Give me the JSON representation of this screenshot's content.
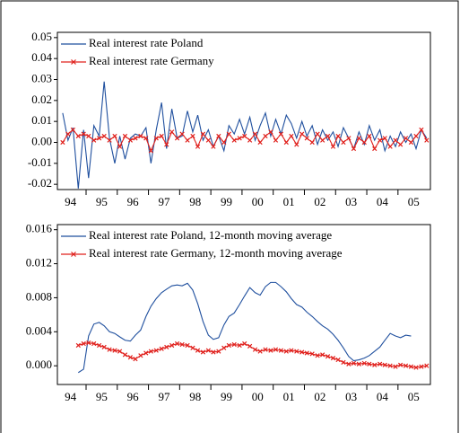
{
  "chart_data": [
    {
      "type": "line",
      "x": [
        1994.25,
        1994.42,
        1994.58,
        1994.75,
        1994.92,
        1995.08,
        1995.25,
        1995.42,
        1995.58,
        1995.75,
        1995.92,
        1996.08,
        1996.25,
        1996.42,
        1996.58,
        1996.75,
        1996.92,
        1997.08,
        1997.25,
        1997.42,
        1997.58,
        1997.75,
        1997.92,
        1998.08,
        1998.25,
        1998.42,
        1998.58,
        1998.75,
        1998.92,
        1999.08,
        1999.25,
        1999.42,
        1999.58,
        1999.75,
        1999.92,
        2000.08,
        2000.25,
        2000.42,
        2000.58,
        2000.75,
        2000.92,
        2001.08,
        2001.25,
        2001.42,
        2001.58,
        2001.75,
        2001.92,
        2002.08,
        2002.25,
        2002.42,
        2002.58,
        2002.75,
        2002.92,
        2003.08,
        2003.25,
        2003.42,
        2003.58,
        2003.75,
        2003.92,
        2004.08,
        2004.25,
        2004.42,
        2004.58,
        2004.75,
        2004.92,
        2005.08,
        2005.25,
        2005.42,
        2005.58,
        2005.75,
        2005.92
      ],
      "series": [
        {
          "name": "Real interest rate Poland",
          "color": "#1f4f9e",
          "values": [
            0.014,
            0.001,
            0.007,
            -0.022,
            0.006,
            -0.017,
            0.008,
            0.003,
            0.029,
            0.002,
            -0.01,
            0.003,
            -0.008,
            0.002,
            0.004,
            0.003,
            0.007,
            -0.01,
            0.006,
            0.019,
            -0.003,
            0.016,
            0.002,
            0.003,
            0.015,
            0.005,
            0.013,
            0.001,
            0.006,
            -0.002,
            0.003,
            -0.004,
            0.008,
            0.004,
            0.011,
            0.004,
            0.012,
            0.001,
            0.008,
            0.014,
            0.003,
            0.011,
            0.004,
            0.013,
            0.009,
            0.002,
            0.01,
            0.003,
            0.008,
            -0.001,
            0.006,
            0.001,
            0.005,
            -0.002,
            0.007,
            0.002,
            -0.003,
            0.005,
            -0.001,
            0.008,
            0.001,
            0.006,
            -0.004,
            0.003,
            -0.002,
            0.005,
            0.0,
            0.004,
            -0.003,
            0.006,
            0.002
          ]
        },
        {
          "name": "Real interest rate Germany",
          "color": "#e0201c",
          "marker": "x",
          "values": [
            0.0,
            0.004,
            0.006,
            0.003,
            0.004,
            0.003,
            0.001,
            0.002,
            0.003,
            0.001,
            0.003,
            -0.002,
            0.003,
            0.001,
            0.002,
            0.003,
            0.002,
            -0.004,
            0.002,
            0.003,
            -0.001,
            0.005,
            0.002,
            0.004,
            0.001,
            0.003,
            -0.002,
            0.004,
            0.001,
            -0.002,
            0.003,
            0.0,
            0.004,
            0.001,
            0.002,
            0.003,
            0.001,
            0.004,
            0.0,
            0.003,
            0.005,
            0.001,
            0.004,
            0.0,
            0.003,
            -0.001,
            0.004,
            0.002,
            0.0,
            0.004,
            0.001,
            0.003,
            -0.002,
            0.003,
            0.0,
            0.002,
            -0.003,
            0.002,
            0.0,
            0.003,
            -0.003,
            0.001,
            0.002,
            -0.002,
            0.001,
            -0.001,
            0.002,
            0.0,
            0.003,
            0.006,
            0.001
          ]
        }
      ],
      "xlim": [
        1994.08,
        2006.04
      ],
      "xticks": [
        {
          "value": 1994,
          "label": "94"
        },
        {
          "value": 1995,
          "label": "95"
        },
        {
          "value": 1996,
          "label": "96"
        },
        {
          "value": 1997,
          "label": "97"
        },
        {
          "value": 1998,
          "label": "98"
        },
        {
          "value": 1999,
          "label": "99"
        },
        {
          "value": 2000,
          "label": "00"
        },
        {
          "value": 2001,
          "label": "01"
        },
        {
          "value": 2002,
          "label": "02"
        },
        {
          "value": 2003,
          "label": "03"
        },
        {
          "value": 2004,
          "label": "04"
        },
        {
          "value": 2005,
          "label": "05"
        }
      ],
      "ylim": [
        -0.0225,
        0.0525
      ],
      "yticks": [
        0.05,
        0.04,
        0.03,
        0.02,
        0.01,
        {
          "value": 0,
          "label": "0.00"
        },
        -0.01,
        -0.02
      ],
      "legend": "upper left"
    },
    {
      "type": "line",
      "x": [
        1994.25,
        1994.42,
        1994.58,
        1994.75,
        1994.92,
        1995.08,
        1995.25,
        1995.42,
        1995.58,
        1995.75,
        1995.92,
        1996.08,
        1996.25,
        1996.42,
        1996.58,
        1996.75,
        1996.92,
        1997.08,
        1997.25,
        1997.42,
        1997.58,
        1997.75,
        1997.92,
        1998.08,
        1998.25,
        1998.42,
        1998.58,
        1998.75,
        1998.92,
        1999.08,
        1999.25,
        1999.42,
        1999.58,
        1999.75,
        1999.92,
        2000.08,
        2000.25,
        2000.42,
        2000.58,
        2000.75,
        2000.92,
        2001.08,
        2001.25,
        2001.42,
        2001.58,
        2001.75,
        2001.92,
        2002.08,
        2002.25,
        2002.42,
        2002.58,
        2002.75,
        2002.92,
        2003.08,
        2003.25,
        2003.42,
        2003.58,
        2003.75,
        2003.92,
        2004.08,
        2004.25,
        2004.42,
        2004.58,
        2004.75,
        2004.92,
        2005.08,
        2005.25,
        2005.42,
        2005.58,
        2005.75,
        2005.92
      ],
      "series": [
        {
          "name": "Real interest rate Poland, 12-month moving average",
          "color": "#1f4f9e",
          "values": [
            null,
            null,
            null,
            -0.0008,
            -0.0004,
            0.0035,
            0.0049,
            0.0051,
            0.0047,
            0.004,
            0.0038,
            0.0034,
            0.003,
            0.0029,
            0.0036,
            0.0042,
            0.0058,
            0.007,
            0.0079,
            0.0086,
            0.009,
            0.0094,
            0.0095,
            0.0094,
            0.0097,
            0.0089,
            0.0073,
            0.0052,
            0.0036,
            0.0031,
            0.0033,
            0.0048,
            0.0058,
            0.0062,
            0.0072,
            0.0082,
            0.0092,
            0.0086,
            0.0083,
            0.0093,
            0.0098,
            0.0098,
            0.0093,
            0.0087,
            0.0079,
            0.0072,
            0.0069,
            0.0063,
            0.0058,
            0.0052,
            0.0047,
            0.0043,
            0.0037,
            0.003,
            0.0021,
            0.0011,
            0.0006,
            0.0007,
            0.0009,
            0.0012,
            0.0017,
            0.0022,
            0.003,
            0.0038,
            0.0035,
            0.0033,
            0.0036,
            0.0035,
            null,
            null,
            null
          ]
        },
        {
          "name": "Real interest rate Germany, 12-month moving average",
          "color": "#e0201c",
          "marker": "x",
          "values": [
            null,
            null,
            null,
            0.0024,
            0.0026,
            0.0027,
            0.0026,
            0.0024,
            0.0022,
            0.0019,
            0.0018,
            0.0017,
            0.0013,
            0.001,
            0.0008,
            0.0012,
            0.0015,
            0.0017,
            0.0018,
            0.002,
            0.0022,
            0.0024,
            0.0026,
            0.0025,
            0.0024,
            0.0021,
            0.0018,
            0.0016,
            0.0018,
            0.0016,
            0.0017,
            0.0021,
            0.0024,
            0.0025,
            0.0024,
            0.0026,
            0.0023,
            0.0019,
            0.0017,
            0.0019,
            0.0018,
            0.0019,
            0.0018,
            0.0017,
            0.0018,
            0.0017,
            0.0016,
            0.0015,
            0.0014,
            0.0012,
            0.0013,
            0.0011,
            0.0009,
            0.0007,
            0.0004,
            0.0002,
            0.0003,
            0.0002,
            0.0003,
            0.0002,
            0.0001,
            0.0002,
            0.0001,
            0.0,
            -0.0001,
            0.0001,
            0.0,
            -0.0001,
            -0.0002,
            -0.0001,
            0.0
          ]
        }
      ],
      "xlim": [
        1994.08,
        2006.04
      ],
      "xticks": [
        {
          "value": 1994,
          "label": "94"
        },
        {
          "value": 1995,
          "label": "95"
        },
        {
          "value": 1996,
          "label": "96"
        },
        {
          "value": 1997,
          "label": "97"
        },
        {
          "value": 1998,
          "label": "98"
        },
        {
          "value": 1999,
          "label": "99"
        },
        {
          "value": 2000,
          "label": "00"
        },
        {
          "value": 2001,
          "label": "01"
        },
        {
          "value": 2002,
          "label": "02"
        },
        {
          "value": 2003,
          "label": "03"
        },
        {
          "value": 2004,
          "label": "04"
        },
        {
          "value": 2005,
          "label": "05"
        }
      ],
      "ylim": [
        -0.0022,
        0.0166
      ],
      "yticks": [
        0.016,
        0.012,
        0.008,
        0.004,
        {
          "value": 0,
          "label": "0.000"
        }
      ],
      "legend": "upper left"
    }
  ]
}
